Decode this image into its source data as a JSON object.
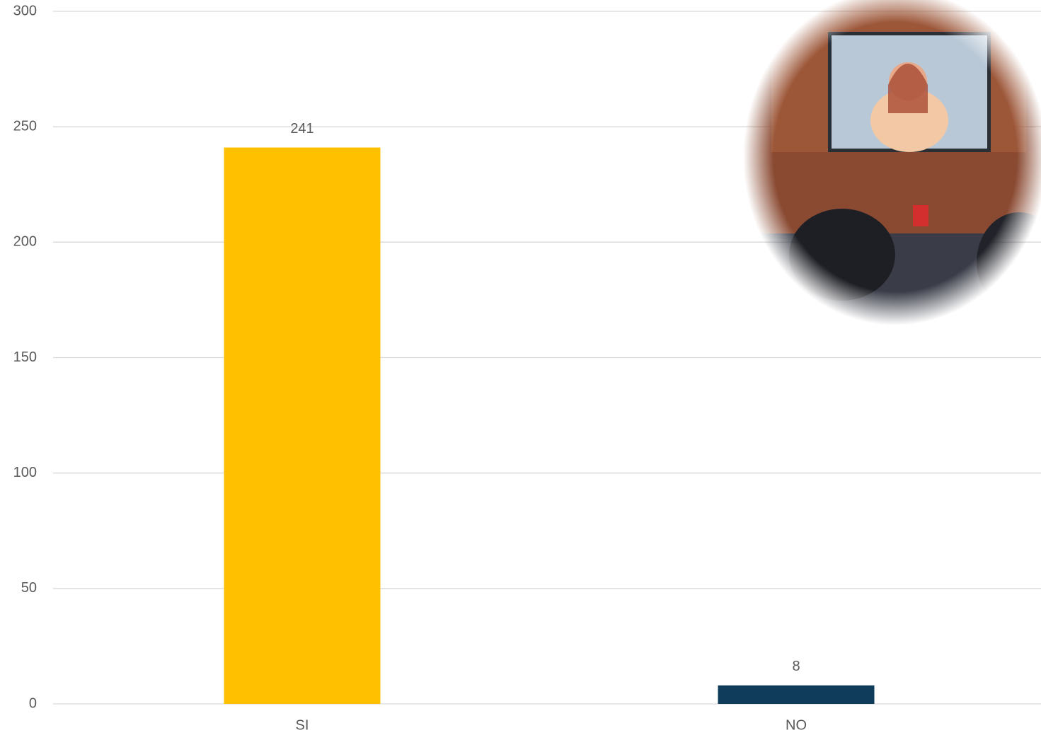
{
  "chart_data": {
    "type": "bar",
    "categories": [
      "SI",
      "NO"
    ],
    "values": [
      241,
      8
    ],
    "colors": [
      "#ffc000",
      "#0e3c5a"
    ],
    "ylim": [
      0,
      300
    ],
    "yticks": [
      0,
      50,
      100,
      150,
      200,
      250,
      300
    ],
    "grid": true,
    "data_labels": true
  }
}
